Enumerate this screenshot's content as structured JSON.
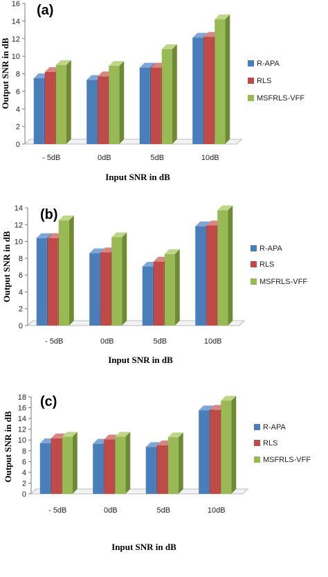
{
  "colors": {
    "R-APA": {
      "front": "#4A7EBB",
      "side": "#2F5A8E",
      "top": "#7FA6D6"
    },
    "RLS": {
      "front": "#BE4B48",
      "side": "#8C2F2D",
      "top": "#D98683"
    },
    "MSFRLS-VFF": {
      "front": "#98B954",
      "side": "#6E8A34",
      "top": "#BFD68A"
    }
  },
  "chart_data": [
    {
      "panel_label": "(a)",
      "type": "bar",
      "categories": [
        "- 5dB",
        "0dB",
        "5dB",
        "10dB"
      ],
      "series": [
        {
          "name": "R-APA",
          "values": [
            7.5,
            7.3,
            8.7,
            12.1
          ]
        },
        {
          "name": "RLS",
          "values": [
            8.2,
            7.7,
            8.7,
            12.2
          ]
        },
        {
          "name": "MSFRLS-VFF",
          "values": [
            9.0,
            8.9,
            10.8,
            14.2
          ]
        }
      ],
      "xlabel": "Input SNR in dB",
      "ylabel": "Output SNR  in dB",
      "ylim": [
        0,
        16
      ],
      "yticks": [
        0,
        2,
        4,
        6,
        8,
        10,
        12,
        14,
        16
      ],
      "legend": [
        "R-APA",
        "RLS",
        "MSFRLS-VFF"
      ],
      "legend_position": "right"
    },
    {
      "panel_label": "(b)",
      "type": "bar",
      "categories": [
        "- 5dB",
        "0dB",
        "5dB",
        "10dB"
      ],
      "series": [
        {
          "name": "R-APA",
          "values": [
            10.4,
            8.6,
            7.0,
            11.8
          ]
        },
        {
          "name": "RLS",
          "values": [
            10.4,
            8.7,
            7.6,
            11.9
          ]
        },
        {
          "name": "MSFRLS-VFF",
          "values": [
            12.5,
            10.5,
            8.5,
            13.7
          ]
        }
      ],
      "xlabel": "Input SNR in dB",
      "ylabel": "Output SNR  in dB",
      "ylim": [
        0,
        14
      ],
      "yticks": [
        0,
        2,
        4,
        6,
        8,
        10,
        12,
        14
      ],
      "legend": [
        "R-APA",
        "RLS",
        "MSFRLS-VFF"
      ],
      "legend_position": "right"
    },
    {
      "panel_label": "(c)",
      "type": "bar",
      "categories": [
        "- 5dB",
        "0dB",
        "5dB",
        "10dB"
      ],
      "series": [
        {
          "name": "R-APA",
          "values": [
            9.4,
            9.3,
            8.7,
            15.5
          ]
        },
        {
          "name": "RLS",
          "values": [
            10.3,
            10.1,
            9.0,
            15.6
          ]
        },
        {
          "name": "MSFRLS-VFF",
          "values": [
            10.6,
            10.6,
            10.5,
            17.3
          ]
        }
      ],
      "xlabel": "Input SNR in dB",
      "ylabel": "Output SNR  in dB",
      "ylim": [
        0,
        18
      ],
      "yticks": [
        0,
        2,
        4,
        6,
        8,
        10,
        12,
        14,
        16,
        18
      ],
      "legend": [
        "R-APA",
        "RLS",
        "MSFRLS-VFF"
      ],
      "legend_position": "right"
    }
  ]
}
